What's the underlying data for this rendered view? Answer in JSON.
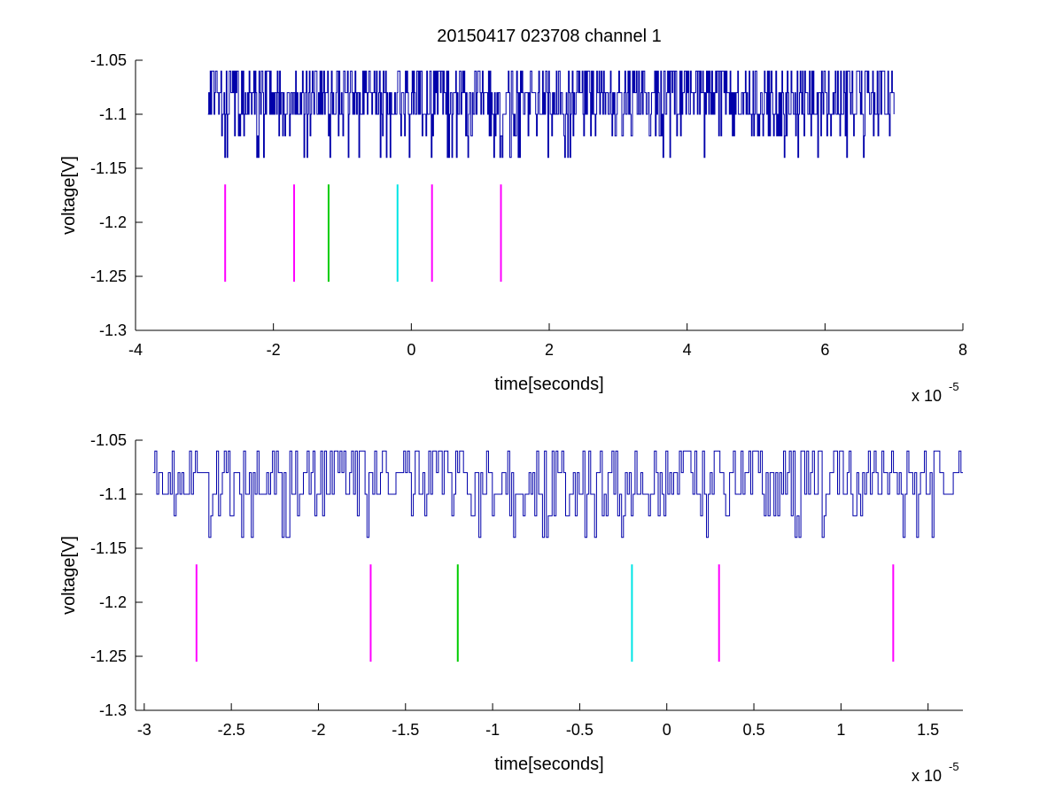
{
  "figure": {
    "title": "20150417 023708 channel 1",
    "background": "#ffffff"
  },
  "chart_data": [
    {
      "type": "line",
      "xlabel": "time[seconds]",
      "ylabel": "voltage[V]",
      "x_multiplier": "x 10",
      "x_multiplier_exponent": "-5",
      "xlim": [
        -4,
        8
      ],
      "ylim": [
        -1.3,
        -1.05
      ],
      "xticks": [
        -4,
        -2,
        0,
        2,
        4,
        6,
        8
      ],
      "xtick_labels": [
        "-4",
        "-2",
        "0",
        "2",
        "4",
        "6",
        "8"
      ],
      "yticks": [
        -1.3,
        -1.25,
        -1.2,
        -1.15,
        -1.1,
        -1.05
      ],
      "ytick_labels": [
        "-1.3",
        "-1.25",
        "-1.2",
        "-1.15",
        "-1.1",
        "-1.05"
      ],
      "grid": false,
      "box": true,
      "series": [
        {
          "color": "#0000aa",
          "x_range": [
            -2.95,
            7.0
          ],
          "levels": [
            -1.14,
            -1.12,
            -1.1,
            -1.08,
            -1.06
          ],
          "baseline": -1.1,
          "description_note": "dense noisy trace"
        }
      ],
      "markers": [
        {
          "x": -2.7,
          "y_range": [
            -1.255,
            -1.165
          ],
          "color": "#ff00ff"
        },
        {
          "x": -1.7,
          "y_range": [
            -1.255,
            -1.165
          ],
          "color": "#ff00ff"
        },
        {
          "x": -1.2,
          "y_range": [
            -1.255,
            -1.165
          ],
          "color": "#00cc00"
        },
        {
          "x": -0.2,
          "y_range": [
            -1.255,
            -1.165
          ],
          "color": "#00e5e5"
        },
        {
          "x": 0.3,
          "y_range": [
            -1.255,
            -1.165
          ],
          "color": "#ff00ff"
        },
        {
          "x": 1.3,
          "y_range": [
            -1.255,
            -1.165
          ],
          "color": "#ff00ff"
        }
      ]
    },
    {
      "type": "line",
      "xlabel": "time[seconds]",
      "ylabel": "voltage[V]",
      "x_multiplier": "x 10",
      "x_multiplier_exponent": "-5",
      "xlim": [
        -3.05,
        1.7
      ],
      "ylim": [
        -1.3,
        -1.05
      ],
      "xticks": [
        -3,
        -2.5,
        -2,
        -1.5,
        -1,
        -0.5,
        0,
        0.5,
        1,
        1.5
      ],
      "xtick_labels": [
        "-3",
        "-2.5",
        "-2",
        "-1.5",
        "-1",
        "-0.5",
        "0",
        "0.5",
        "1",
        "1.5"
      ],
      "yticks": [
        -1.3,
        -1.25,
        -1.2,
        -1.15,
        -1.1,
        -1.05
      ],
      "ytick_labels": [
        "-1.3",
        "-1.25",
        "-1.2",
        "-1.15",
        "-1.1",
        "-1.05"
      ],
      "grid": false,
      "box": true,
      "series": [
        {
          "color": "#0000aa",
          "x_range": [
            -2.95,
            1.7
          ],
          "levels": [
            -1.14,
            -1.12,
            -1.1,
            -1.08,
            -1.06
          ],
          "baseline": -1.1
        }
      ],
      "markers": [
        {
          "x": -2.7,
          "y_range": [
            -1.255,
            -1.165
          ],
          "color": "#ff00ff"
        },
        {
          "x": -1.7,
          "y_range": [
            -1.255,
            -1.165
          ],
          "color": "#ff00ff"
        },
        {
          "x": -1.2,
          "y_range": [
            -1.255,
            -1.165
          ],
          "color": "#00cc00"
        },
        {
          "x": -0.2,
          "y_range": [
            -1.255,
            -1.165
          ],
          "color": "#00e5e5"
        },
        {
          "x": 0.3,
          "y_range": [
            -1.255,
            -1.165
          ],
          "color": "#ff00ff"
        },
        {
          "x": 1.3,
          "y_range": [
            -1.255,
            -1.165
          ],
          "color": "#ff00ff"
        }
      ]
    }
  ]
}
